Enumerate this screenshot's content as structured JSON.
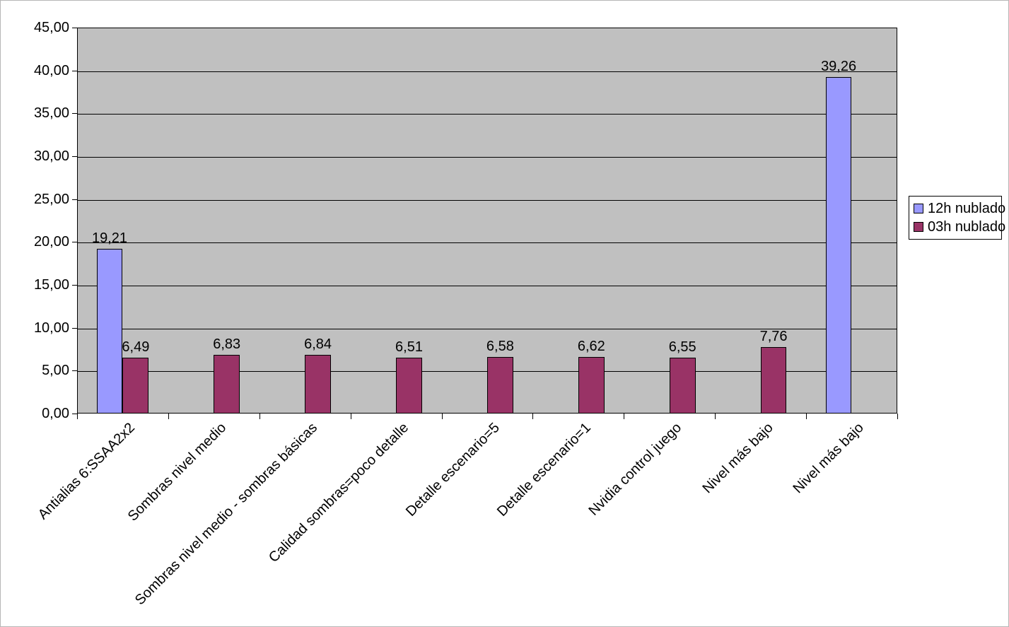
{
  "chart_data": {
    "type": "bar",
    "title": "",
    "xlabel": "",
    "ylabel": "",
    "categories": [
      "Antialias 6:SSAA2x2",
      "Sombras nivel medio",
      "Sombras nivel medio - sombras básicas",
      "Calidad sombras=poco detalle",
      "Detalle escenario=5",
      "Detalle escenario=1",
      "Nvidia control juego",
      "Nivel más bajo",
      "Nivel más bajo"
    ],
    "series": [
      {
        "name": "12h nublado",
        "color": "#9999FF",
        "values": [
          19.21,
          null,
          null,
          null,
          null,
          null,
          null,
          null,
          39.26
        ],
        "labels": [
          "19,21",
          "",
          "",
          "",
          "",
          "",
          "",
          "",
          "39,26"
        ]
      },
      {
        "name": "03h nublado",
        "color": "#993366",
        "values": [
          6.49,
          6.83,
          6.84,
          6.51,
          6.58,
          6.62,
          6.55,
          7.76,
          null
        ],
        "labels": [
          "6,49",
          "6,83",
          "6,84",
          "6,51",
          "6,58",
          "6,62",
          "6,55",
          "7,76",
          ""
        ]
      }
    ],
    "y_axis": {
      "min": 0,
      "max": 45,
      "step": 5,
      "tick_labels": [
        "0,00",
        "5,00",
        "10,00",
        "15,00",
        "20,00",
        "25,00",
        "30,00",
        "35,00",
        "40,00",
        "45,00"
      ]
    },
    "ylim": [
      0,
      45
    ],
    "grid": true,
    "legend_position": "right",
    "colors": {
      "plot_bg": "#C0C0C0",
      "grid": "#000000",
      "axis": "#000000"
    }
  },
  "legend": {
    "items": [
      {
        "label": "12h nublado",
        "color": "#9999FF"
      },
      {
        "label": "03h nublado",
        "color": "#993366"
      }
    ]
  }
}
